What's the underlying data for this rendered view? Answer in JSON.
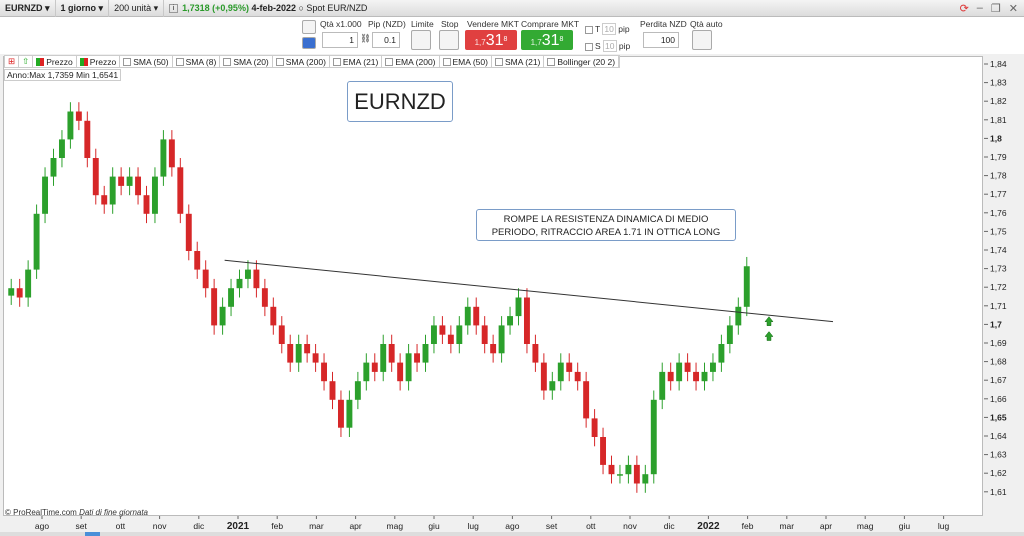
{
  "topbar": {
    "symbol": "EURNZD",
    "timeframe": "1 giorno",
    "units": "200 unità",
    "last": "1,7318 (+0,95%)",
    "date": "4-feb-2022",
    "instrument": "Spot EUR/NZD"
  },
  "toolbar": {
    "qty_label": "Qtà x1.000",
    "qty_value": "1",
    "pip_label": "Pip (NZD)",
    "pip_value": "0.1",
    "limit_label": "Limite",
    "stop_label": "Stop",
    "sell_label": "Vendere MKT",
    "buy_label": "Comprare MKT",
    "sell_price": {
      "small": "1,7",
      "big": "31",
      "sup": "8"
    },
    "buy_price": {
      "small": "1,7",
      "big": "31",
      "sup": "8"
    },
    "t_label": "T",
    "s_label": "S",
    "t_pip": "10",
    "s_pip": "10",
    "pip_unit": "pip",
    "loss_label": "Perdita NZD",
    "loss_value": "100",
    "auto_label": "Qtà auto",
    "colors": {
      "sell": "#e04040",
      "buy": "#33aa33"
    }
  },
  "indicators": [
    "Prezzo",
    "Prezzo",
    "SMA (50)",
    "SMA (8)",
    "SMA (20)",
    "SMA (200)",
    "EMA (21)",
    "EMA (200)",
    "EMA (50)",
    "SMA (21)",
    "Bollinger (20 2)"
  ],
  "annual": "Anno:Max 1,7359 Min 1,6541",
  "footer": {
    "copyright": "© ProRealTime.com",
    "note": "Dati di fine giornata"
  },
  "chart_data": {
    "type": "candlestick",
    "title": "EURNZD",
    "annotation": "ROMPE LA RESISTENZA DINAMICA DI MEDIO PERIODO, RITRACCIO AREA 1.71 IN OTTICA LONG",
    "ylim": [
      1.605,
      1.845
    ],
    "yticks": [
      "1,84",
      "1,83",
      "1,82",
      "1,81",
      "1,8",
      "1,79",
      "1,78",
      "1,77",
      "1,76",
      "1,75",
      "1,74",
      "1,73",
      "1,72",
      "1,71",
      "1,7",
      "1,69",
      "1,68",
      "1,67",
      "1,66",
      "1,65",
      "1,64",
      "1,63",
      "1,62",
      "1,61"
    ],
    "xticks": [
      "ago",
      "set",
      "ott",
      "nov",
      "dic",
      "2021",
      "feb",
      "mar",
      "apr",
      "mag",
      "giu",
      "lug",
      "ago",
      "set",
      "ott",
      "nov",
      "dic",
      "2022",
      "feb",
      "mar",
      "apr",
      "mag",
      "giu",
      "lug"
    ],
    "closes": [
      1.72,
      1.715,
      1.73,
      1.76,
      1.78,
      1.79,
      1.8,
      1.815,
      1.81,
      1.79,
      1.77,
      1.765,
      1.78,
      1.775,
      1.78,
      1.77,
      1.76,
      1.78,
      1.8,
      1.785,
      1.76,
      1.74,
      1.73,
      1.72,
      1.7,
      1.71,
      1.72,
      1.725,
      1.73,
      1.72,
      1.71,
      1.7,
      1.69,
      1.68,
      1.69,
      1.685,
      1.68,
      1.67,
      1.66,
      1.645,
      1.66,
      1.67,
      1.68,
      1.675,
      1.69,
      1.68,
      1.67,
      1.685,
      1.68,
      1.69,
      1.7,
      1.695,
      1.69,
      1.7,
      1.71,
      1.7,
      1.69,
      1.685,
      1.7,
      1.705,
      1.715,
      1.69,
      1.68,
      1.665,
      1.67,
      1.68,
      1.675,
      1.67,
      1.65,
      1.64,
      1.625,
      1.62,
      1.62,
      1.625,
      1.615,
      1.62,
      1.66,
      1.675,
      1.67,
      1.68,
      1.675,
      1.67,
      1.675,
      1.68,
      1.69,
      1.7,
      1.71,
      1.7318
    ],
    "trendline": [
      [
        "2020-12-20",
        1.735
      ],
      [
        "2022-04-01",
        1.702
      ]
    ],
    "arrows": [
      1.702,
      1.694
    ],
    "grid": false,
    "colors": {
      "up": "#2ca02c",
      "down": "#d62728"
    }
  }
}
